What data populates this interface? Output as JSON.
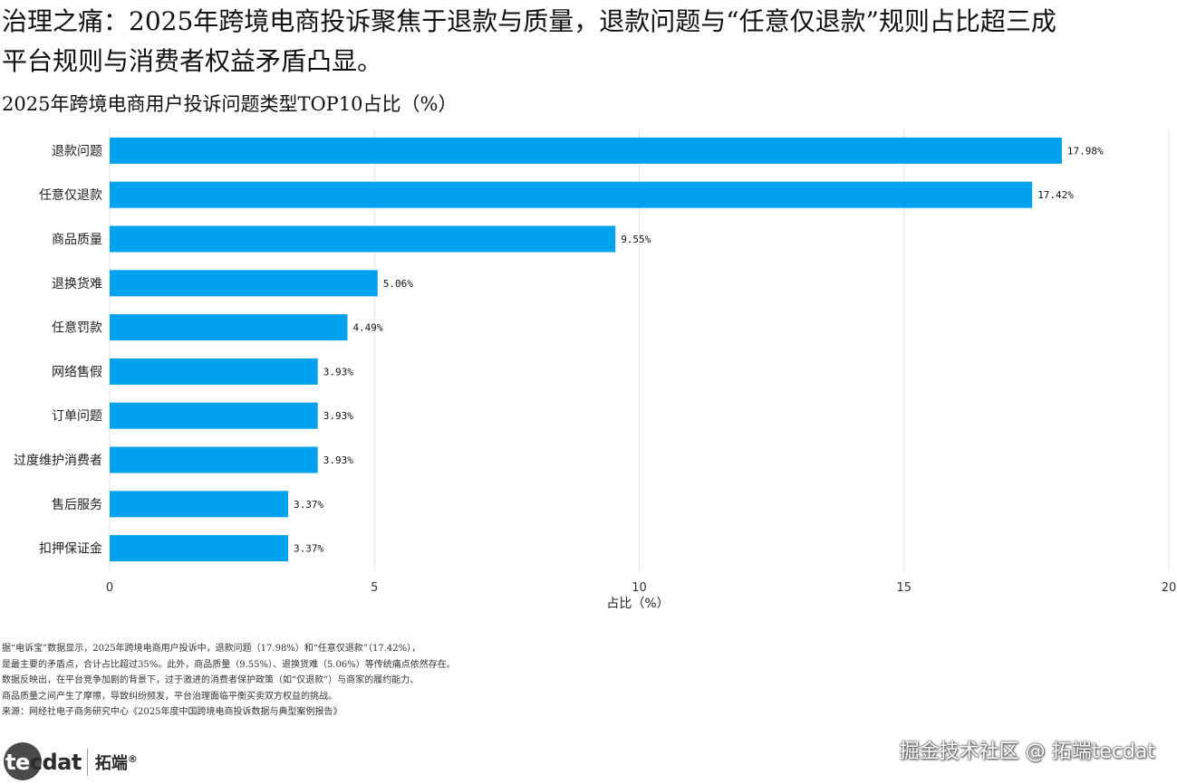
{
  "headline": {
    "line1": "治理之痛：2025年跨境电商投诉聚焦于退款与质量，退款问题与“任意仅退款”规则占比超三成",
    "line2": "平台规则与消费者权益矛盾凸显。"
  },
  "chart_data": {
    "type": "bar",
    "orientation": "horizontal",
    "title": "2025年跨境电商用户投诉问题类型TOP10占比（%）",
    "categories": [
      "退款问题",
      "任意仅退款",
      "商品质量",
      "退换货难",
      "任意罚款",
      "网络售假",
      "订单问题",
      "过度维护消费者",
      "售后服务",
      "扣押保证金"
    ],
    "values": [
      17.98,
      17.42,
      9.55,
      5.06,
      4.49,
      3.93,
      3.93,
      3.93,
      3.37,
      3.37
    ],
    "value_labels": [
      "17.98%",
      "17.42%",
      "9.55%",
      "5.06%",
      "4.49%",
      "3.93%",
      "3.93%",
      "3.93%",
      "3.37%",
      "3.37%"
    ],
    "xlabel": "占比（%）",
    "ylabel": "",
    "xlim": [
      0,
      20
    ],
    "xticks": [
      0,
      5,
      10,
      15,
      20
    ],
    "grid": true,
    "bar_color": "#00a2ee"
  },
  "notes": [
    "据“电诉宝”数据显示，2025年跨境电商用户投诉中，退款问题（17.98%）和“任意仅退款”（17.42%），",
    "是最主要的矛盾点，合计占比超过35%。此外，商品质量（9.55%）、退换货难（5.06%）等传统痛点依然存在。",
    "数据反映出，在平台竞争加剧的背景下，过于激进的消费者保护政策（如“仅退款”）与商家的履约能力、",
    "商品质量之间产生了摩擦，导致纠纷频发，平台治理面临平衡买卖双方权益的挑战。",
    "来源：网经社电子商务研究中心《2025年度中国跨境电商投诉数据与典型案例报告》"
  ],
  "logo": {
    "brand_prefix": "te",
    "brand_suffix": "cdat",
    "cn": "拓端",
    "reg": "®"
  },
  "watermark": "掘金技术社区 @ 拓端tecdat"
}
